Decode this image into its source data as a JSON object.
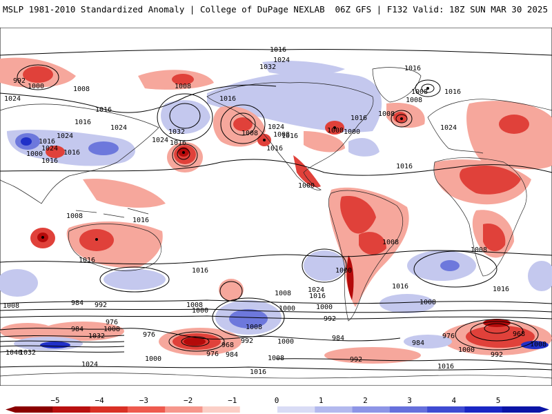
{
  "header": {
    "left": "MSLP 1981-2010 Standardized Anomaly | College of DuPage NEXLAB",
    "right": "06Z GFS | F132 Valid: 18Z SUN MAR 30 2025"
  },
  "colors": {
    "neg_strong": "#b40a0a",
    "neg_mid": "#e0413a",
    "neg_light": "#f6a79c",
    "pos_light": "#c4c8ee",
    "pos_mid": "#6d78dc",
    "pos_strong": "#2030c8",
    "contour": "#000000",
    "coast": "#222222"
  },
  "colorbar": {
    "ticks": [
      "−5",
      "−4",
      "−3",
      "−2",
      "−1",
      "0",
      "1",
      "2",
      "3",
      "4",
      "5"
    ],
    "colors": [
      "#8a0000",
      "#b80f0f",
      "#d93025",
      "#ee5a4e",
      "#f6978c",
      "#fbcfc7",
      "#ffffff",
      "#d9dcf5",
      "#b3b9ee",
      "#8d95e6",
      "#6670dc",
      "#3f4bd2",
      "#1a26c4",
      "#0a14a6"
    ]
  },
  "labels": [
    {
      "text": "1016",
      "id": "l1"
    },
    {
      "text": "1024",
      "id": "l2"
    },
    {
      "text": "1032",
      "id": "l3"
    },
    {
      "text": "992",
      "id": "l4"
    },
    {
      "text": "1000",
      "id": "l5"
    },
    {
      "text": "1008",
      "id": "l6"
    },
    {
      "text": "1024",
      "id": "l7"
    },
    {
      "text": "1016",
      "id": "l8"
    },
    {
      "text": "1016",
      "id": "l9"
    },
    {
      "text": "1024",
      "id": "l10"
    },
    {
      "text": "1032",
      "id": "l11"
    },
    {
      "text": "1016",
      "id": "l12"
    },
    {
      "text": "1008",
      "id": "l13"
    },
    {
      "text": "1024",
      "id": "l14"
    },
    {
      "text": "1016",
      "id": "l15"
    },
    {
      "text": "1024",
      "id": "l16"
    },
    {
      "text": "1016",
      "id": "l17"
    },
    {
      "text": "1008",
      "id": "l18"
    },
    {
      "text": "1008",
      "id": "l19"
    },
    {
      "text": "1016",
      "id": "l20"
    },
    {
      "text": "1008",
      "id": "l21"
    },
    {
      "text": "1016",
      "id": "l22"
    },
    {
      "text": "1008",
      "id": "l23"
    },
    {
      "text": "1000",
      "id": "l24"
    },
    {
      "text": "1008",
      "id": "l25"
    },
    {
      "text": "1008",
      "id": "l26"
    },
    {
      "text": "1016",
      "id": "l27"
    },
    {
      "text": "1016",
      "id": "l28"
    },
    {
      "text": "1024",
      "id": "l29"
    },
    {
      "text": "1016",
      "id": "l30"
    },
    {
      "text": "1000",
      "id": "l31"
    },
    {
      "text": "1016",
      "id": "l32"
    },
    {
      "text": "1016",
      "id": "l33"
    },
    {
      "text": "1024",
      "id": "l34"
    },
    {
      "text": "1016",
      "id": "l35"
    },
    {
      "text": "1024",
      "id": "l36"
    },
    {
      "text": "1016",
      "id": "l37"
    },
    {
      "text": "1016",
      "id": "l38"
    },
    {
      "text": "1008",
      "id": "l39"
    },
    {
      "text": "1000",
      "id": "l40"
    },
    {
      "text": "984",
      "id": "l41"
    },
    {
      "text": "992",
      "id": "l42"
    },
    {
      "text": "976",
      "id": "l43"
    },
    {
      "text": "984",
      "id": "l44"
    },
    {
      "text": "1008",
      "id": "l45"
    },
    {
      "text": "1032",
      "id": "l46"
    },
    {
      "text": "976",
      "id": "l47"
    },
    {
      "text": "968",
      "id": "l48"
    },
    {
      "text": "992",
      "id": "l49"
    },
    {
      "text": "976",
      "id": "l50"
    },
    {
      "text": "984",
      "id": "l51"
    },
    {
      "text": "1000",
      "id": "l52"
    },
    {
      "text": "1008",
      "id": "l53"
    },
    {
      "text": "1000",
      "id": "l54"
    },
    {
      "text": "1000",
      "id": "l55"
    },
    {
      "text": "1008",
      "id": "l56"
    },
    {
      "text": "1016",
      "id": "l57"
    },
    {
      "text": "1008",
      "id": "l58"
    },
    {
      "text": "992",
      "id": "l59"
    },
    {
      "text": "1016",
      "id": "l60"
    },
    {
      "text": "1024",
      "id": "l61"
    },
    {
      "text": "1000",
      "id": "l62"
    },
    {
      "text": "984",
      "id": "l63"
    },
    {
      "text": "992",
      "id": "l64"
    },
    {
      "text": "1000",
      "id": "l65"
    },
    {
      "text": "1008",
      "id": "l66"
    },
    {
      "text": "984",
      "id": "l67"
    },
    {
      "text": "976",
      "id": "l68"
    },
    {
      "text": "968",
      "id": "l69"
    },
    {
      "text": "992",
      "id": "l70"
    },
    {
      "text": "1000",
      "id": "l71"
    },
    {
      "text": "1008",
      "id": "l72"
    },
    {
      "text": "1016",
      "id": "l73"
    },
    {
      "text": "1016",
      "id": "l74"
    },
    {
      "text": "1000",
      "id": "l75"
    },
    {
      "text": "1040",
      "id": "l76"
    },
    {
      "text": "1032",
      "id": "l77"
    },
    {
      "text": "1024",
      "id": "l78"
    },
    {
      "text": "1016",
      "id": "l79"
    },
    {
      "text": "1016",
      "id": "l80"
    },
    {
      "text": "1008",
      "id": "l81"
    },
    {
      "text": "1008",
      "id": "l82"
    },
    {
      "text": "1008",
      "id": "l83"
    },
    {
      "text": "1008",
      "id": "l84"
    }
  ]
}
